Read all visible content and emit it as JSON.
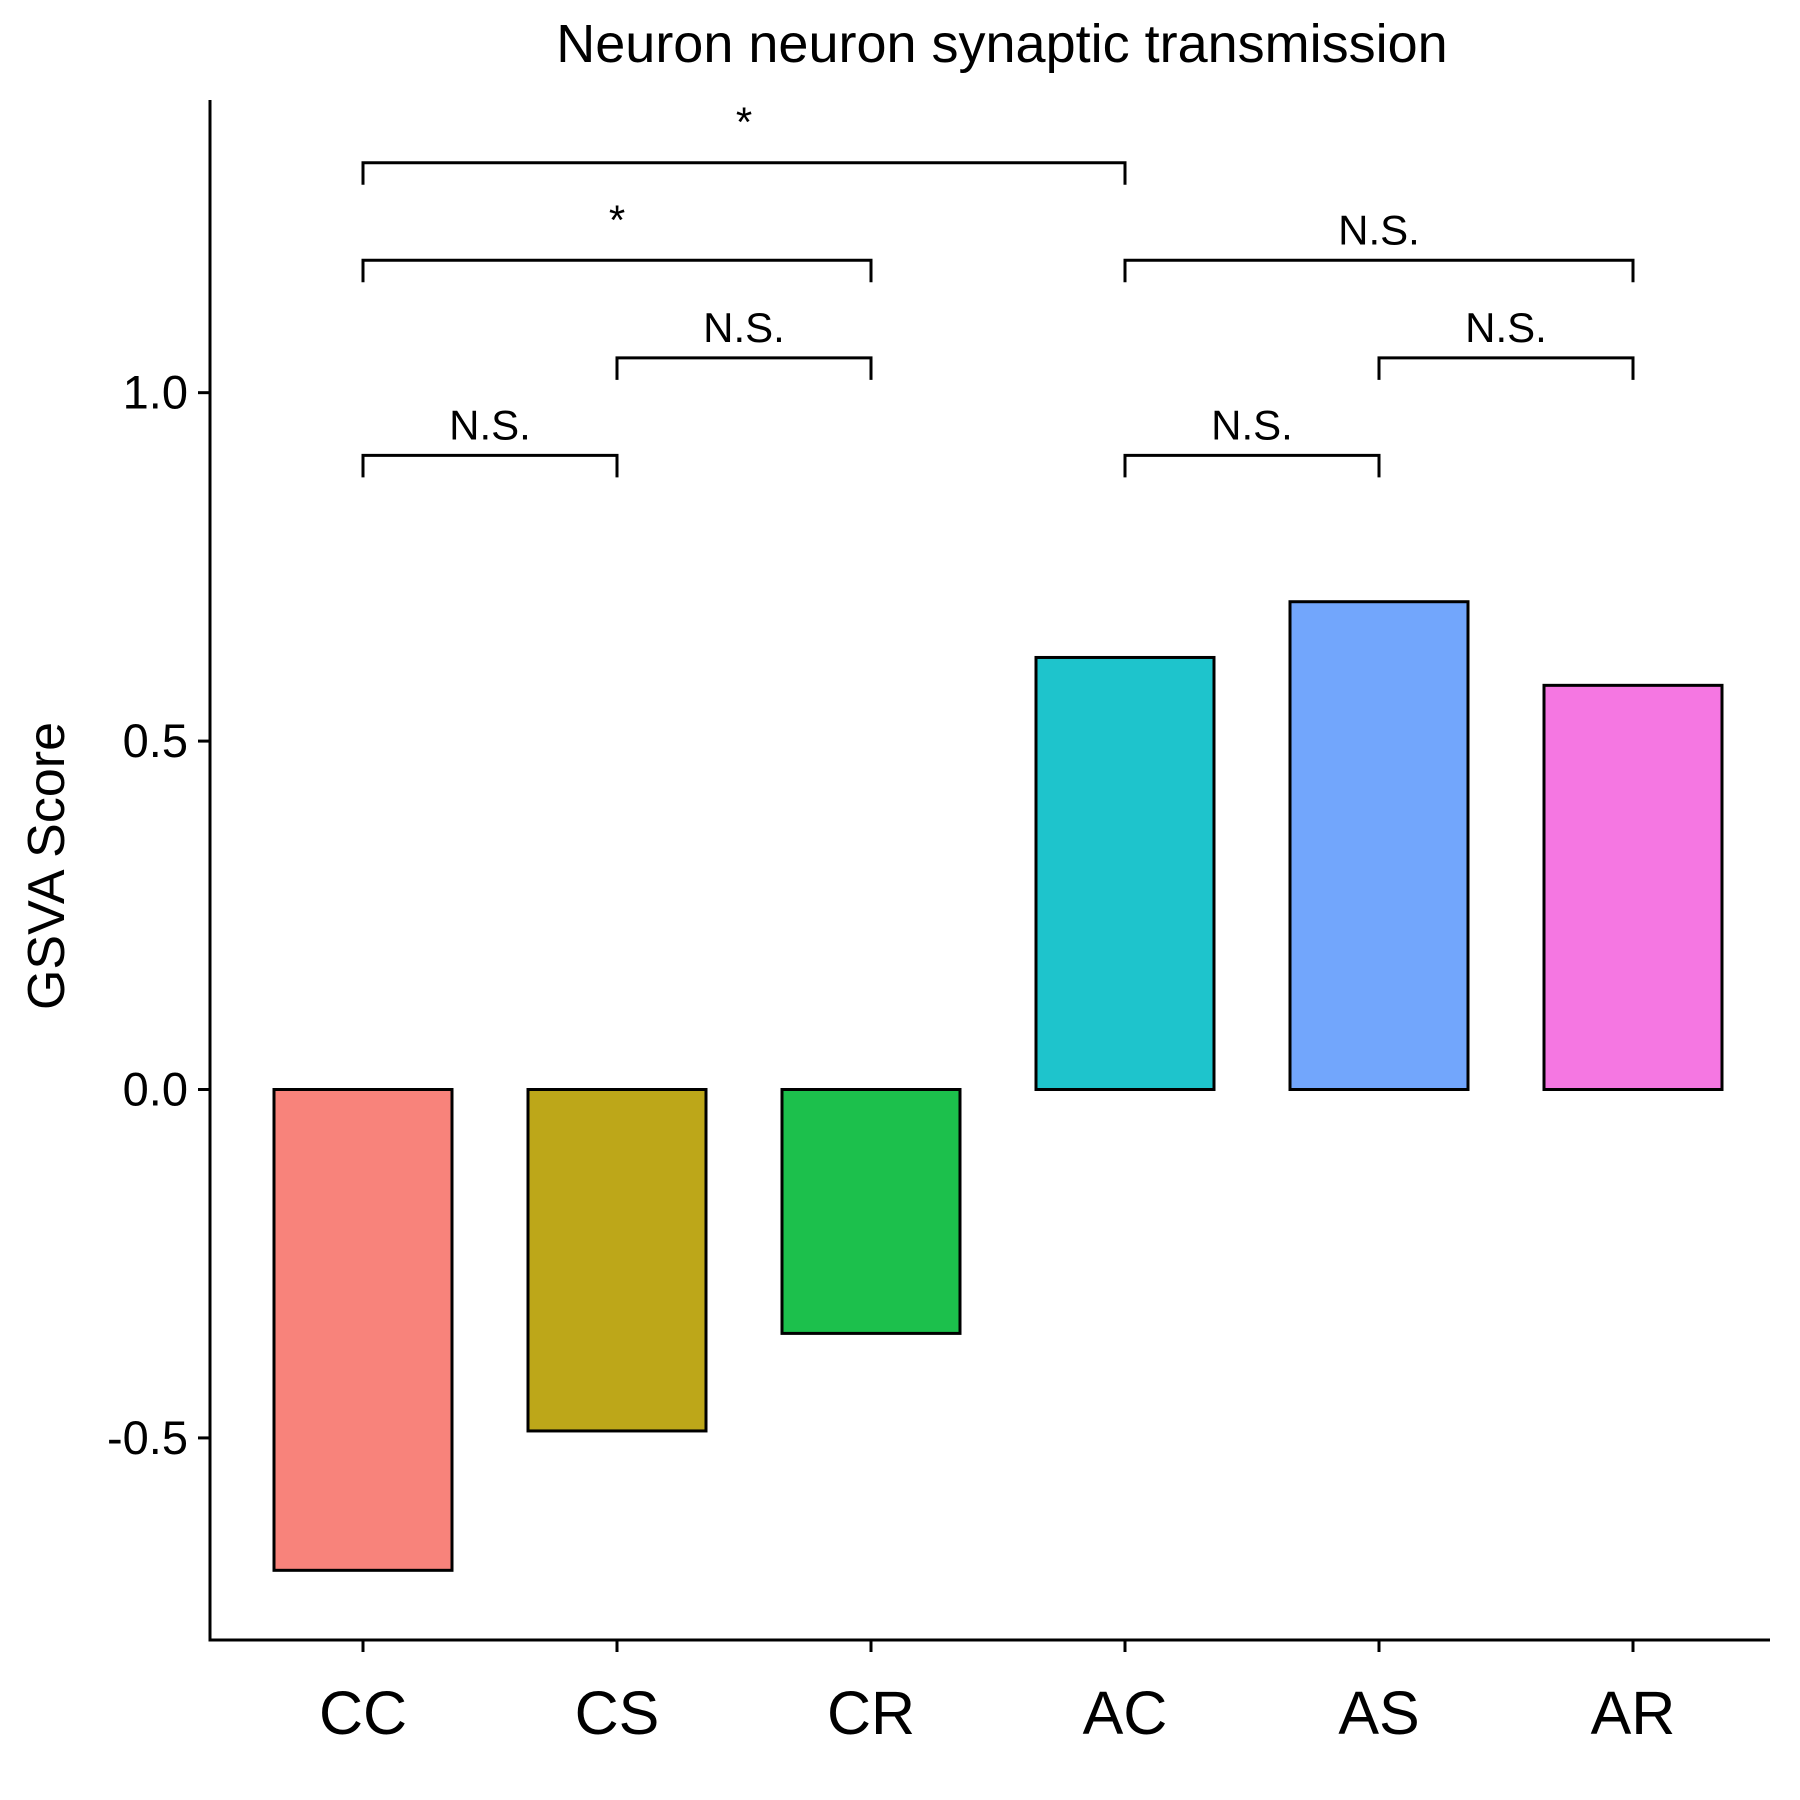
{
  "chart_data": {
    "type": "bar",
    "title": "Neuron neuron synaptic transmission",
    "xlabel": "",
    "ylabel": "GSVA Score",
    "categories": [
      "CC",
      "CS",
      "CR",
      "AC",
      "AS",
      "AR"
    ],
    "values": [
      -0.69,
      -0.49,
      -0.35,
      0.62,
      0.7,
      0.58
    ],
    "colors": [
      "#F8837B",
      "#BDA719",
      "#1CC04C",
      "#1EC4CC",
      "#72A6FC",
      "#F577E2"
    ],
    "ylim": [
      -0.79,
      1.42
    ],
    "yticks": [
      -0.5,
      0.0,
      0.5,
      1.0
    ],
    "ytick_labels": [
      "-0.5",
      "0.0",
      "0.5",
      "1.0"
    ],
    "grid": false,
    "legend": "none",
    "comparisons": [
      {
        "from": "CC",
        "to": "CS",
        "label": "N.S.",
        "y": 0.91
      },
      {
        "from": "CS",
        "to": "CR",
        "label": "N.S.",
        "y": 1.05
      },
      {
        "from": "CC",
        "to": "CR",
        "label": "*",
        "y": 1.19
      },
      {
        "from": "CC",
        "to": "AC",
        "label": "*",
        "y": 1.33
      },
      {
        "from": "AC",
        "to": "AS",
        "label": "N.S.",
        "y": 0.91
      },
      {
        "from": "AS",
        "to": "AR",
        "label": "N.S.",
        "y": 1.05
      },
      {
        "from": "AC",
        "to": "AR",
        "label": "N.S.",
        "y": 1.19
      }
    ]
  }
}
